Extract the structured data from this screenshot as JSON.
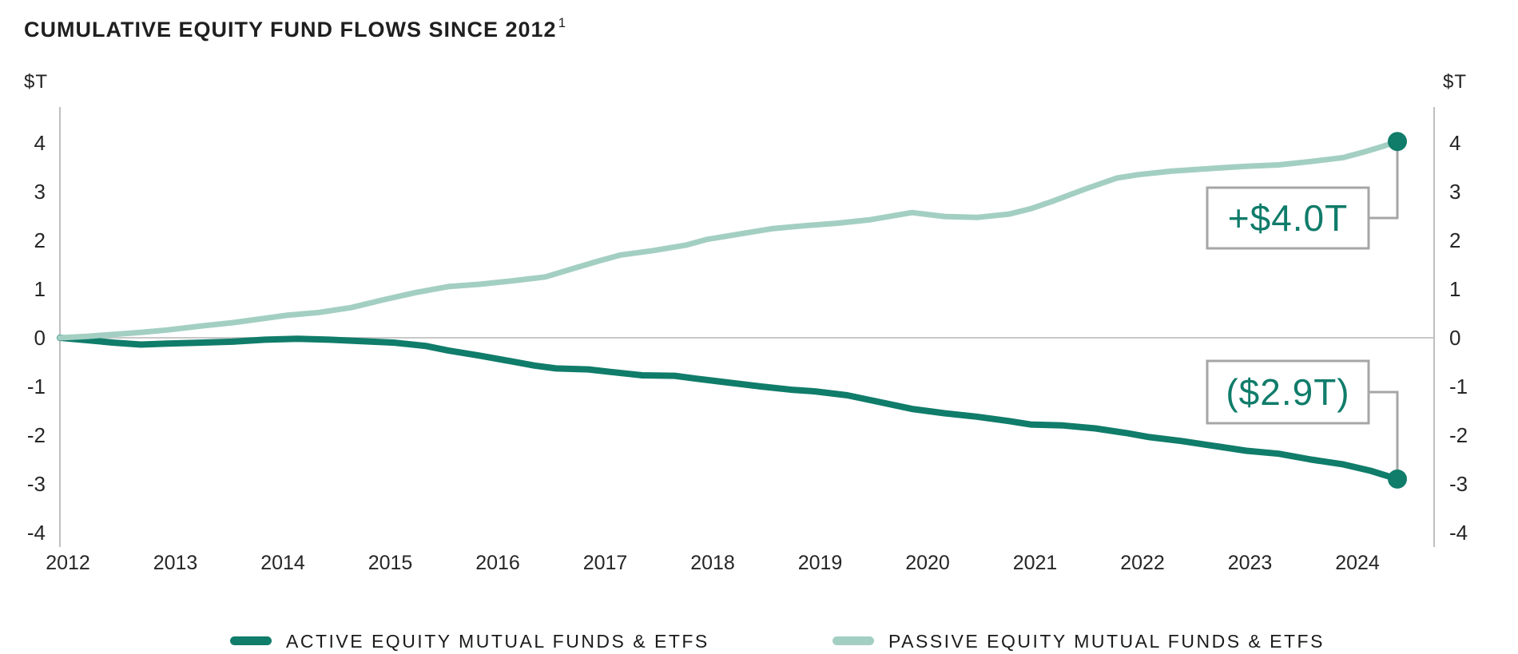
{
  "title": {
    "text": "CUMULATIVE EQUITY FUND FLOWS SINCE 2012",
    "footnote_marker": "1"
  },
  "axes": {
    "unit_label_left": "$T",
    "unit_label_right": "$T"
  },
  "annotations": {
    "passive_end_label": "+$4.0T",
    "active_end_label": "($2.9T)"
  },
  "legend": [
    {
      "label": "ACTIVE EQUITY MUTUAL FUNDS & ETFS",
      "color": "#107C6A"
    },
    {
      "label": "PASSIVE EQUITY MUTUAL FUNDS & ETFS",
      "color": "#A3CFC2"
    }
  ],
  "colors": {
    "active": "#107C6A",
    "passive": "#A3CFC2",
    "axis_gray": "#BFBFBF",
    "callout_border_gray": "#A6A6A6",
    "text_dark": "#1F1F1F"
  },
  "chart_data": {
    "type": "line",
    "title": "CUMULATIVE EQUITY FUND FLOWS SINCE 2012",
    "ylabel": "$T",
    "unit": "trillions of US dollars, cumulative flows",
    "x_range": [
      2012,
      2024.4
    ],
    "ylim": [
      -4,
      4
    ],
    "y_ticks": [
      4,
      3,
      2,
      1,
      0,
      -1,
      -2,
      -3,
      -4
    ],
    "x_tick_labels": [
      "2012",
      "2013",
      "2014",
      "2015",
      "2016",
      "2017",
      "2018",
      "2019",
      "2020",
      "2021",
      "2022",
      "2023",
      "2024"
    ],
    "grid": "horizontal zero-line only",
    "legend_position": "bottom",
    "series": [
      {
        "id": "active",
        "name": "ACTIVE EQUITY MUTUAL FUNDS & ETFS",
        "color": "#107C6A",
        "line_width": 8,
        "end_value": -2.9,
        "end_label": "($2.9T)",
        "points": [
          [
            2012.0,
            0
          ],
          [
            2012.2,
            -0.04
          ],
          [
            2012.5,
            -0.1
          ],
          [
            2012.75,
            -0.14
          ],
          [
            2013.0,
            -0.12
          ],
          [
            2013.3,
            -0.1
          ],
          [
            2013.6,
            -0.08
          ],
          [
            2013.9,
            -0.04
          ],
          [
            2014.2,
            -0.02
          ],
          [
            2014.5,
            -0.04
          ],
          [
            2014.8,
            -0.07
          ],
          [
            2015.1,
            -0.1
          ],
          [
            2015.4,
            -0.17
          ],
          [
            2015.6,
            -0.26
          ],
          [
            2015.9,
            -0.37
          ],
          [
            2016.1,
            -0.45
          ],
          [
            2016.4,
            -0.57
          ],
          [
            2016.6,
            -0.63
          ],
          [
            2016.9,
            -0.65
          ],
          [
            2017.1,
            -0.7
          ],
          [
            2017.4,
            -0.77
          ],
          [
            2017.7,
            -0.78
          ],
          [
            2017.9,
            -0.84
          ],
          [
            2018.2,
            -0.92
          ],
          [
            2018.5,
            -1.0
          ],
          [
            2018.8,
            -1.07
          ],
          [
            2019.0,
            -1.1
          ],
          [
            2019.3,
            -1.18
          ],
          [
            2019.6,
            -1.32
          ],
          [
            2019.9,
            -1.46
          ],
          [
            2020.2,
            -1.55
          ],
          [
            2020.5,
            -1.62
          ],
          [
            2020.8,
            -1.71
          ],
          [
            2021.0,
            -1.78
          ],
          [
            2021.3,
            -1.8
          ],
          [
            2021.6,
            -1.86
          ],
          [
            2021.9,
            -1.96
          ],
          [
            2022.1,
            -2.04
          ],
          [
            2022.4,
            -2.12
          ],
          [
            2022.7,
            -2.22
          ],
          [
            2023.0,
            -2.32
          ],
          [
            2023.3,
            -2.38
          ],
          [
            2023.6,
            -2.5
          ],
          [
            2023.9,
            -2.6
          ],
          [
            2024.15,
            -2.73
          ],
          [
            2024.4,
            -2.9
          ]
        ]
      },
      {
        "id": "passive",
        "name": "PASSIVE EQUITY MUTUAL FUNDS & ETFS",
        "color": "#A3CFC2",
        "line_width": 7,
        "end_value": 4.0,
        "end_label": "+$4.0T",
        "points": [
          [
            2012.0,
            0
          ],
          [
            2012.25,
            0.03
          ],
          [
            2012.5,
            0.07
          ],
          [
            2012.75,
            0.11
          ],
          [
            2013.0,
            0.16
          ],
          [
            2013.3,
            0.24
          ],
          [
            2013.6,
            0.31
          ],
          [
            2013.9,
            0.4
          ],
          [
            2014.1,
            0.46
          ],
          [
            2014.4,
            0.52
          ],
          [
            2014.7,
            0.62
          ],
          [
            2015.0,
            0.78
          ],
          [
            2015.3,
            0.93
          ],
          [
            2015.6,
            1.05
          ],
          [
            2015.9,
            1.1
          ],
          [
            2016.2,
            1.17
          ],
          [
            2016.5,
            1.25
          ],
          [
            2016.8,
            1.45
          ],
          [
            2017.0,
            1.58
          ],
          [
            2017.2,
            1.7
          ],
          [
            2017.5,
            1.79
          ],
          [
            2017.8,
            1.9
          ],
          [
            2018.0,
            2.02
          ],
          [
            2018.3,
            2.13
          ],
          [
            2018.6,
            2.24
          ],
          [
            2018.9,
            2.3
          ],
          [
            2019.2,
            2.35
          ],
          [
            2019.5,
            2.42
          ],
          [
            2019.9,
            2.57
          ],
          [
            2020.2,
            2.49
          ],
          [
            2020.5,
            2.47
          ],
          [
            2020.8,
            2.54
          ],
          [
            2021.0,
            2.65
          ],
          [
            2021.2,
            2.8
          ],
          [
            2021.5,
            3.05
          ],
          [
            2021.8,
            3.28
          ],
          [
            2022.0,
            3.35
          ],
          [
            2022.3,
            3.42
          ],
          [
            2022.7,
            3.48
          ],
          [
            2023.0,
            3.52
          ],
          [
            2023.3,
            3.55
          ],
          [
            2023.6,
            3.62
          ],
          [
            2023.9,
            3.7
          ],
          [
            2024.1,
            3.82
          ],
          [
            2024.25,
            3.92
          ],
          [
            2024.4,
            4.03
          ]
        ]
      }
    ]
  }
}
